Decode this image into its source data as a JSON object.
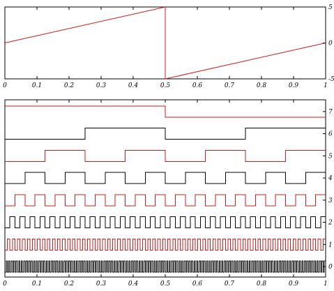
{
  "colors": {
    "red": "#d11a1a",
    "black": "#000000",
    "frame": "#000000"
  },
  "chart_data": [
    {
      "type": "line",
      "title": "",
      "xlabel": "",
      "ylabel": "",
      "xlim": [
        0,
        1
      ],
      "ylim": [
        -5,
        5
      ],
      "x_ticks": [
        "0",
        "0.1",
        "0.2",
        "0.3",
        "0.4",
        "0.5",
        "0.6",
        "0.7",
        "0.8",
        "0.9",
        "1"
      ],
      "y_ticks_right": [
        "5",
        "0",
        "-5"
      ],
      "grid": false,
      "legend": "none",
      "series": [
        {
          "color": "red",
          "x": [
            0,
            0.5,
            0.5,
            1
          ],
          "y": [
            0,
            5,
            -5,
            0
          ]
        }
      ]
    },
    {
      "type": "line",
      "title": "",
      "xlabel": "",
      "ylabel": "",
      "xlim": [
        0,
        1
      ],
      "x_ticks": [
        "0",
        "0.1",
        "0.2",
        "0.3",
        "0.4",
        "0.5",
        "0.6",
        "0.7",
        "0.8",
        "0.9",
        "1"
      ],
      "y_ticks_right": [
        "7",
        "6",
        "5",
        "4",
        "3",
        "2",
        "1",
        "0"
      ],
      "grid": false,
      "legend": "none",
      "series": [
        {
          "bit": 7,
          "color": "red",
          "period": 1,
          "starts_high": true
        },
        {
          "bit": 6,
          "color": "black",
          "period": 0.5,
          "starts_high": false
        },
        {
          "bit": 5,
          "color": "red",
          "period": 0.25,
          "starts_high": false
        },
        {
          "bit": 4,
          "color": "black",
          "period": 0.125,
          "starts_high": false
        },
        {
          "bit": 3,
          "color": "red",
          "period": 0.0625,
          "starts_high": false
        },
        {
          "bit": 2,
          "color": "black",
          "period": 0.03125,
          "starts_high": false
        },
        {
          "bit": 1,
          "color": "red",
          "period": 0.015625,
          "starts_high": false
        },
        {
          "bit": 0,
          "color": "black",
          "period": 0.0078125,
          "starts_high": false
        }
      ]
    }
  ]
}
